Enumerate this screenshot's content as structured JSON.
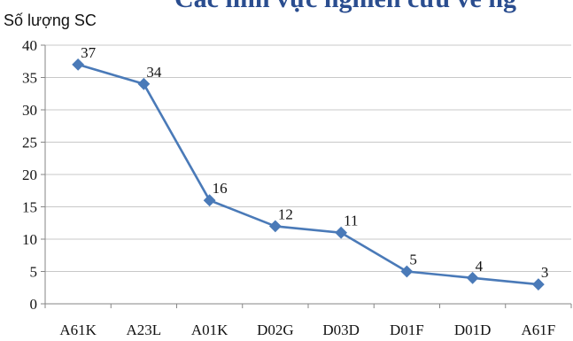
{
  "header": {
    "title_fragment": "Các lĩnh vực nghiên cứu về ng"
  },
  "chart_data": {
    "type": "line",
    "title": "",
    "xlabel": "",
    "ylabel": "Số lượng SC",
    "categories": [
      "A61K",
      "A23L",
      "A01K",
      "D02G",
      "D03D",
      "D01F",
      "D01D",
      "A61F"
    ],
    "values": [
      37,
      34,
      16,
      12,
      11,
      5,
      4,
      3
    ],
    "ylim": [
      0,
      40
    ],
    "yticks": [
      0,
      5,
      10,
      15,
      20,
      25,
      30,
      35,
      40
    ],
    "grid": "horizontal",
    "legend": "none",
    "marker": "diamond",
    "colors": {
      "line": "#4a7ab8",
      "marker": "#4a7ab8",
      "grid": "#c8c8c8",
      "axis": "#868686",
      "title": "#2a4d8f"
    }
  }
}
